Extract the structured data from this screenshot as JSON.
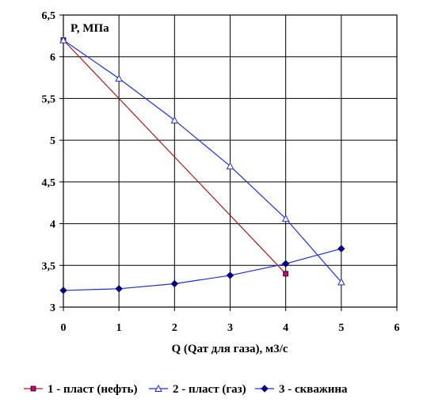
{
  "chart_data": {
    "type": "line",
    "title": "",
    "xlabel": "Q (Qат для газа), м3/с",
    "ylabel": "P, МПа",
    "xlim": [
      0,
      6
    ],
    "ylim": [
      3,
      6.5
    ],
    "x_ticks": [
      "0",
      "1",
      "2",
      "3",
      "4",
      "5",
      "6"
    ],
    "y_ticks": [
      "3",
      "3,5",
      "4",
      "4,5",
      "5",
      "5,5",
      "6",
      "6,5"
    ],
    "grid": true,
    "legend_position": "bottom",
    "series": [
      {
        "name": "1 - пласт (нефть)",
        "color": "#9b1c1c",
        "marker_color": "#cc0077",
        "marker": "square",
        "x": [
          0,
          4
        ],
        "y": [
          6.2,
          3.4
        ]
      },
      {
        "name": "2 - пласт (газ)",
        "color": "#1f2fd0",
        "marker_color": "#1f2fd0",
        "marker": "triangle",
        "x": [
          0,
          1,
          2,
          3,
          4,
          5
        ],
        "y": [
          6.2,
          5.74,
          5.24,
          4.69,
          4.06,
          3.3
        ]
      },
      {
        "name": "3 - скважина",
        "color": "#1f2fd0",
        "marker_color": "#000080",
        "marker": "diamond",
        "x": [
          0,
          1,
          2,
          3,
          4,
          5
        ],
        "y": [
          3.2,
          3.22,
          3.28,
          3.38,
          3.52,
          3.7
        ]
      }
    ]
  }
}
